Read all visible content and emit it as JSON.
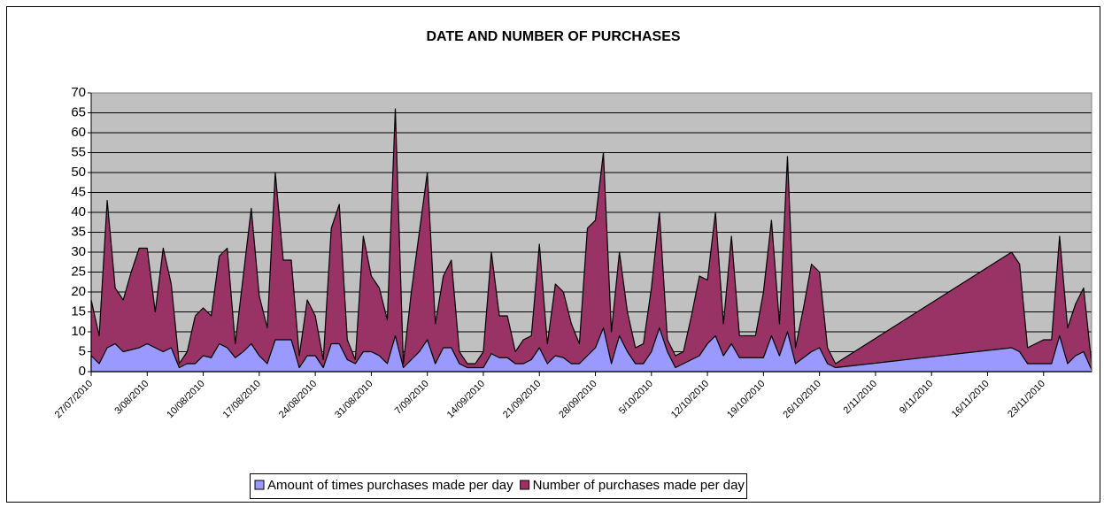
{
  "chart_data": {
    "type": "area",
    "title": "DATE AND NUMBER OF PURCHASES",
    "x": [
      "2010-07-27",
      "2010-07-28",
      "2010-07-29",
      "2010-07-30",
      "2010-07-31",
      "2010-08-01",
      "2010-08-02",
      "2010-08-03",
      "2010-08-04",
      "2010-08-05",
      "2010-08-06",
      "2010-08-07",
      "2010-08-08",
      "2010-08-09",
      "2010-08-10",
      "2010-08-11",
      "2010-08-12",
      "2010-08-13",
      "2010-08-14",
      "2010-08-15",
      "2010-08-16",
      "2010-08-17",
      "2010-08-18",
      "2010-08-19",
      "2010-08-20",
      "2010-08-21",
      "2010-08-22",
      "2010-08-23",
      "2010-08-24",
      "2010-08-25",
      "2010-08-26",
      "2010-08-27",
      "2010-08-28",
      "2010-08-29",
      "2010-08-30",
      "2010-08-31",
      "2010-09-01",
      "2010-09-02",
      "2010-09-03",
      "2010-09-04",
      "2010-09-05",
      "2010-09-06",
      "2010-09-07",
      "2010-09-08",
      "2010-09-09",
      "2010-09-10",
      "2010-09-11",
      "2010-09-12",
      "2010-09-13",
      "2010-09-14",
      "2010-09-15",
      "2010-09-16",
      "2010-09-17",
      "2010-09-18",
      "2010-09-19",
      "2010-09-20",
      "2010-09-21",
      "2010-09-22",
      "2010-09-23",
      "2010-09-24",
      "2010-09-25",
      "2010-09-26",
      "2010-09-27",
      "2010-09-28",
      "2010-09-29",
      "2010-09-30",
      "2010-10-01",
      "2010-10-02",
      "2010-10-03",
      "2010-10-04",
      "2010-10-05",
      "2010-10-06",
      "2010-10-07",
      "2010-10-08",
      "2010-10-09",
      "2010-10-10",
      "2010-10-11",
      "2010-10-12",
      "2010-10-13",
      "2010-10-14",
      "2010-10-15",
      "2010-10-16",
      "2010-10-17",
      "2010-10-18",
      "2010-10-19",
      "2010-10-20",
      "2010-10-21",
      "2010-10-22",
      "2010-10-23",
      "2010-10-24",
      "2010-10-25",
      "2010-10-26",
      "2010-10-27",
      "2010-10-28",
      "2010-11-19",
      "2010-11-20",
      "2010-11-21",
      "2010-11-23",
      "2010-11-24",
      "2010-11-25",
      "2010-11-26",
      "2010-11-27",
      "2010-11-28",
      "2010-11-29"
    ],
    "series": [
      {
        "name": "Amount of times purchases made per day",
        "color": "#9999ff",
        "values": [
          4,
          2,
          6,
          7,
          5,
          5.5,
          6,
          7,
          6,
          5,
          6,
          1,
          2,
          2,
          4,
          3.5,
          7,
          6,
          3.5,
          5,
          7,
          4,
          2,
          8,
          8,
          8,
          1,
          4,
          4,
          1,
          7,
          7,
          3,
          2,
          5,
          5,
          4,
          2,
          9,
          1,
          3,
          5,
          8,
          2,
          6,
          6,
          2,
          1,
          1,
          1,
          4.5,
          3.5,
          3.5,
          2,
          2,
          3,
          6,
          2,
          4,
          3.5,
          2,
          2,
          4,
          6,
          11,
          2,
          9,
          5,
          2,
          2,
          5,
          11,
          5,
          1,
          2,
          3,
          4,
          7,
          9,
          4,
          7,
          3.5,
          3.5,
          3.5,
          3.5,
          9,
          4,
          10,
          2,
          3.5,
          5,
          6,
          2,
          1,
          6,
          5,
          2,
          2,
          2,
          9,
          2,
          4,
          5,
          0.5
        ]
      },
      {
        "name": "Number of purchases made per day",
        "color": "#993366",
        "values": [
          18,
          9,
          43,
          21,
          18,
          25,
          31,
          31,
          15,
          31,
          22,
          2,
          5,
          14,
          16,
          14,
          29,
          31,
          7,
          24,
          41,
          19,
          11,
          50,
          28,
          28,
          4,
          18,
          14,
          3,
          36,
          42,
          8,
          3,
          34,
          24,
          21,
          13,
          66,
          2,
          20,
          35,
          50,
          12,
          24,
          28,
          5,
          2,
          2,
          5,
          30,
          14,
          14,
          5,
          8,
          9,
          32,
          7,
          22,
          20,
          12,
          7,
          36,
          38,
          55,
          10,
          30,
          15,
          6,
          7,
          21,
          40,
          8,
          4,
          5,
          14,
          24,
          23,
          40,
          12,
          34,
          9,
          9,
          9,
          20,
          38,
          12,
          54,
          6,
          16,
          27,
          25,
          6,
          2,
          30,
          27,
          6,
          8,
          8,
          34,
          11,
          17,
          21,
          2
        ]
      }
    ],
    "xlim": [
      "2010-07-27",
      "2010-11-29"
    ],
    "xticks": [
      {
        "value": "2010-07-27",
        "label": "27/07/2010"
      },
      {
        "value": "2010-08-03",
        "label": "3/08/2010"
      },
      {
        "value": "2010-08-10",
        "label": "10/08/2010"
      },
      {
        "value": "2010-08-17",
        "label": "17/08/2010"
      },
      {
        "value": "2010-08-24",
        "label": "24/08/2010"
      },
      {
        "value": "2010-08-31",
        "label": "31/08/2010"
      },
      {
        "value": "2010-09-07",
        "label": "7/09/2010"
      },
      {
        "value": "2010-09-14",
        "label": "14/09/2010"
      },
      {
        "value": "2010-09-21",
        "label": "21/09/2010"
      },
      {
        "value": "2010-09-28",
        "label": "28/09/2010"
      },
      {
        "value": "2010-10-05",
        "label": "5/10/2010"
      },
      {
        "value": "2010-10-12",
        "label": "12/10/2010"
      },
      {
        "value": "2010-10-19",
        "label": "19/10/2010"
      },
      {
        "value": "2010-10-26",
        "label": "26/10/2010"
      },
      {
        "value": "2010-11-02",
        "label": "2/11/2010"
      },
      {
        "value": "2010-11-09",
        "label": "9/11/2010"
      },
      {
        "value": "2010-11-16",
        "label": "16/11/2010"
      },
      {
        "value": "2010-11-23",
        "label": "23/11/2010"
      }
    ],
    "ylim": [
      0,
      70
    ],
    "yticks": [
      0,
      5,
      10,
      15,
      20,
      25,
      30,
      35,
      40,
      45,
      50,
      55,
      60,
      65,
      70
    ],
    "grid": true,
    "legend": "bottom",
    "plot_background": "#c0c0c0"
  }
}
